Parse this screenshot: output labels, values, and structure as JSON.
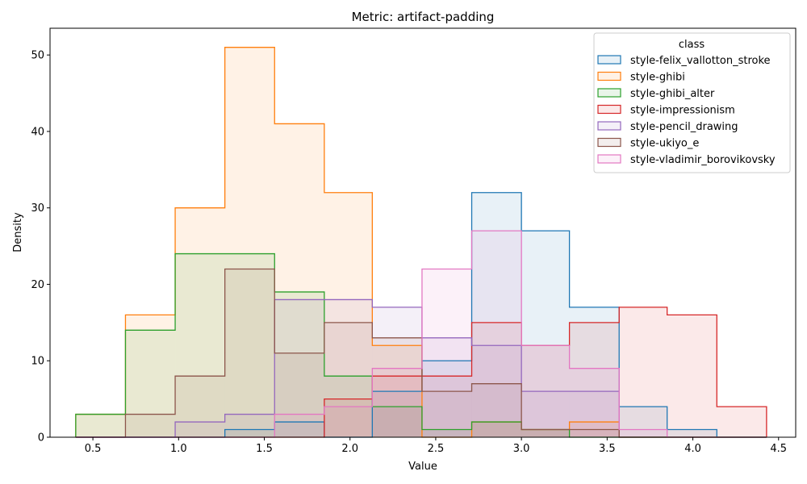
{
  "chart_data": {
    "type": "histogram",
    "title": "Metric: artifact-padding",
    "xlabel": "Value",
    "ylabel": "Density",
    "xlim": [
      0.25,
      4.6
    ],
    "ylim": [
      0,
      53.5
    ],
    "xticks": [
      0.5,
      1.0,
      1.5,
      2.0,
      2.5,
      3.0,
      3.5,
      4.0,
      4.5
    ],
    "xtick_labels": [
      "0.5",
      "1.0",
      "1.5",
      "2.0",
      "2.5",
      "3.0",
      "3.5",
      "4.0",
      "4.5"
    ],
    "yticks": [
      0,
      10,
      20,
      30,
      40,
      50
    ],
    "ytick_labels": [
      "0",
      "10",
      "20",
      "30",
      "40",
      "50"
    ],
    "grid": false,
    "legend": {
      "title": "class",
      "placement": "top-right"
    },
    "bin_edges": [
      0.4,
      0.69,
      0.98,
      1.27,
      1.56,
      1.85,
      2.13,
      2.42,
      2.71,
      3.0,
      3.28,
      3.57,
      3.85,
      4.14,
      4.43
    ],
    "series": [
      {
        "name": "style-felix_vallotton_stroke",
        "color": "#1f77b4",
        "values": [
          0,
          0,
          0,
          1,
          2,
          0,
          6,
          10,
          32,
          27,
          17,
          4,
          1,
          0
        ]
      },
      {
        "name": "style-ghibi",
        "color": "#ff7f0e",
        "values": [
          3,
          16,
          30,
          51,
          41,
          32,
          12,
          0,
          2,
          1,
          2,
          0,
          0,
          0
        ]
      },
      {
        "name": "style-ghibi_alter",
        "color": "#2ca02c",
        "values": [
          3,
          14,
          24,
          24,
          19,
          8,
          4,
          1,
          2,
          1,
          0,
          0,
          0,
          0
        ]
      },
      {
        "name": "style-impressionism",
        "color": "#d62728",
        "values": [
          0,
          0,
          0,
          0,
          0,
          5,
          8,
          8,
          15,
          12,
          15,
          17,
          16,
          4
        ]
      },
      {
        "name": "style-pencil_drawing",
        "color": "#9467bd",
        "values": [
          0,
          0,
          2,
          3,
          18,
          18,
          17,
          13,
          12,
          6,
          6,
          0,
          0,
          0
        ]
      },
      {
        "name": "style-ukiyo_e",
        "color": "#8c564b",
        "values": [
          0,
          3,
          8,
          22,
          11,
          15,
          13,
          6,
          7,
          1,
          1,
          0,
          0,
          0
        ]
      },
      {
        "name": "style-vladimir_borovikovsky",
        "color": "#e377c2",
        "values": [
          0,
          0,
          0,
          0,
          3,
          4,
          9,
          22,
          27,
          12,
          9,
          1,
          0,
          0
        ]
      }
    ]
  }
}
